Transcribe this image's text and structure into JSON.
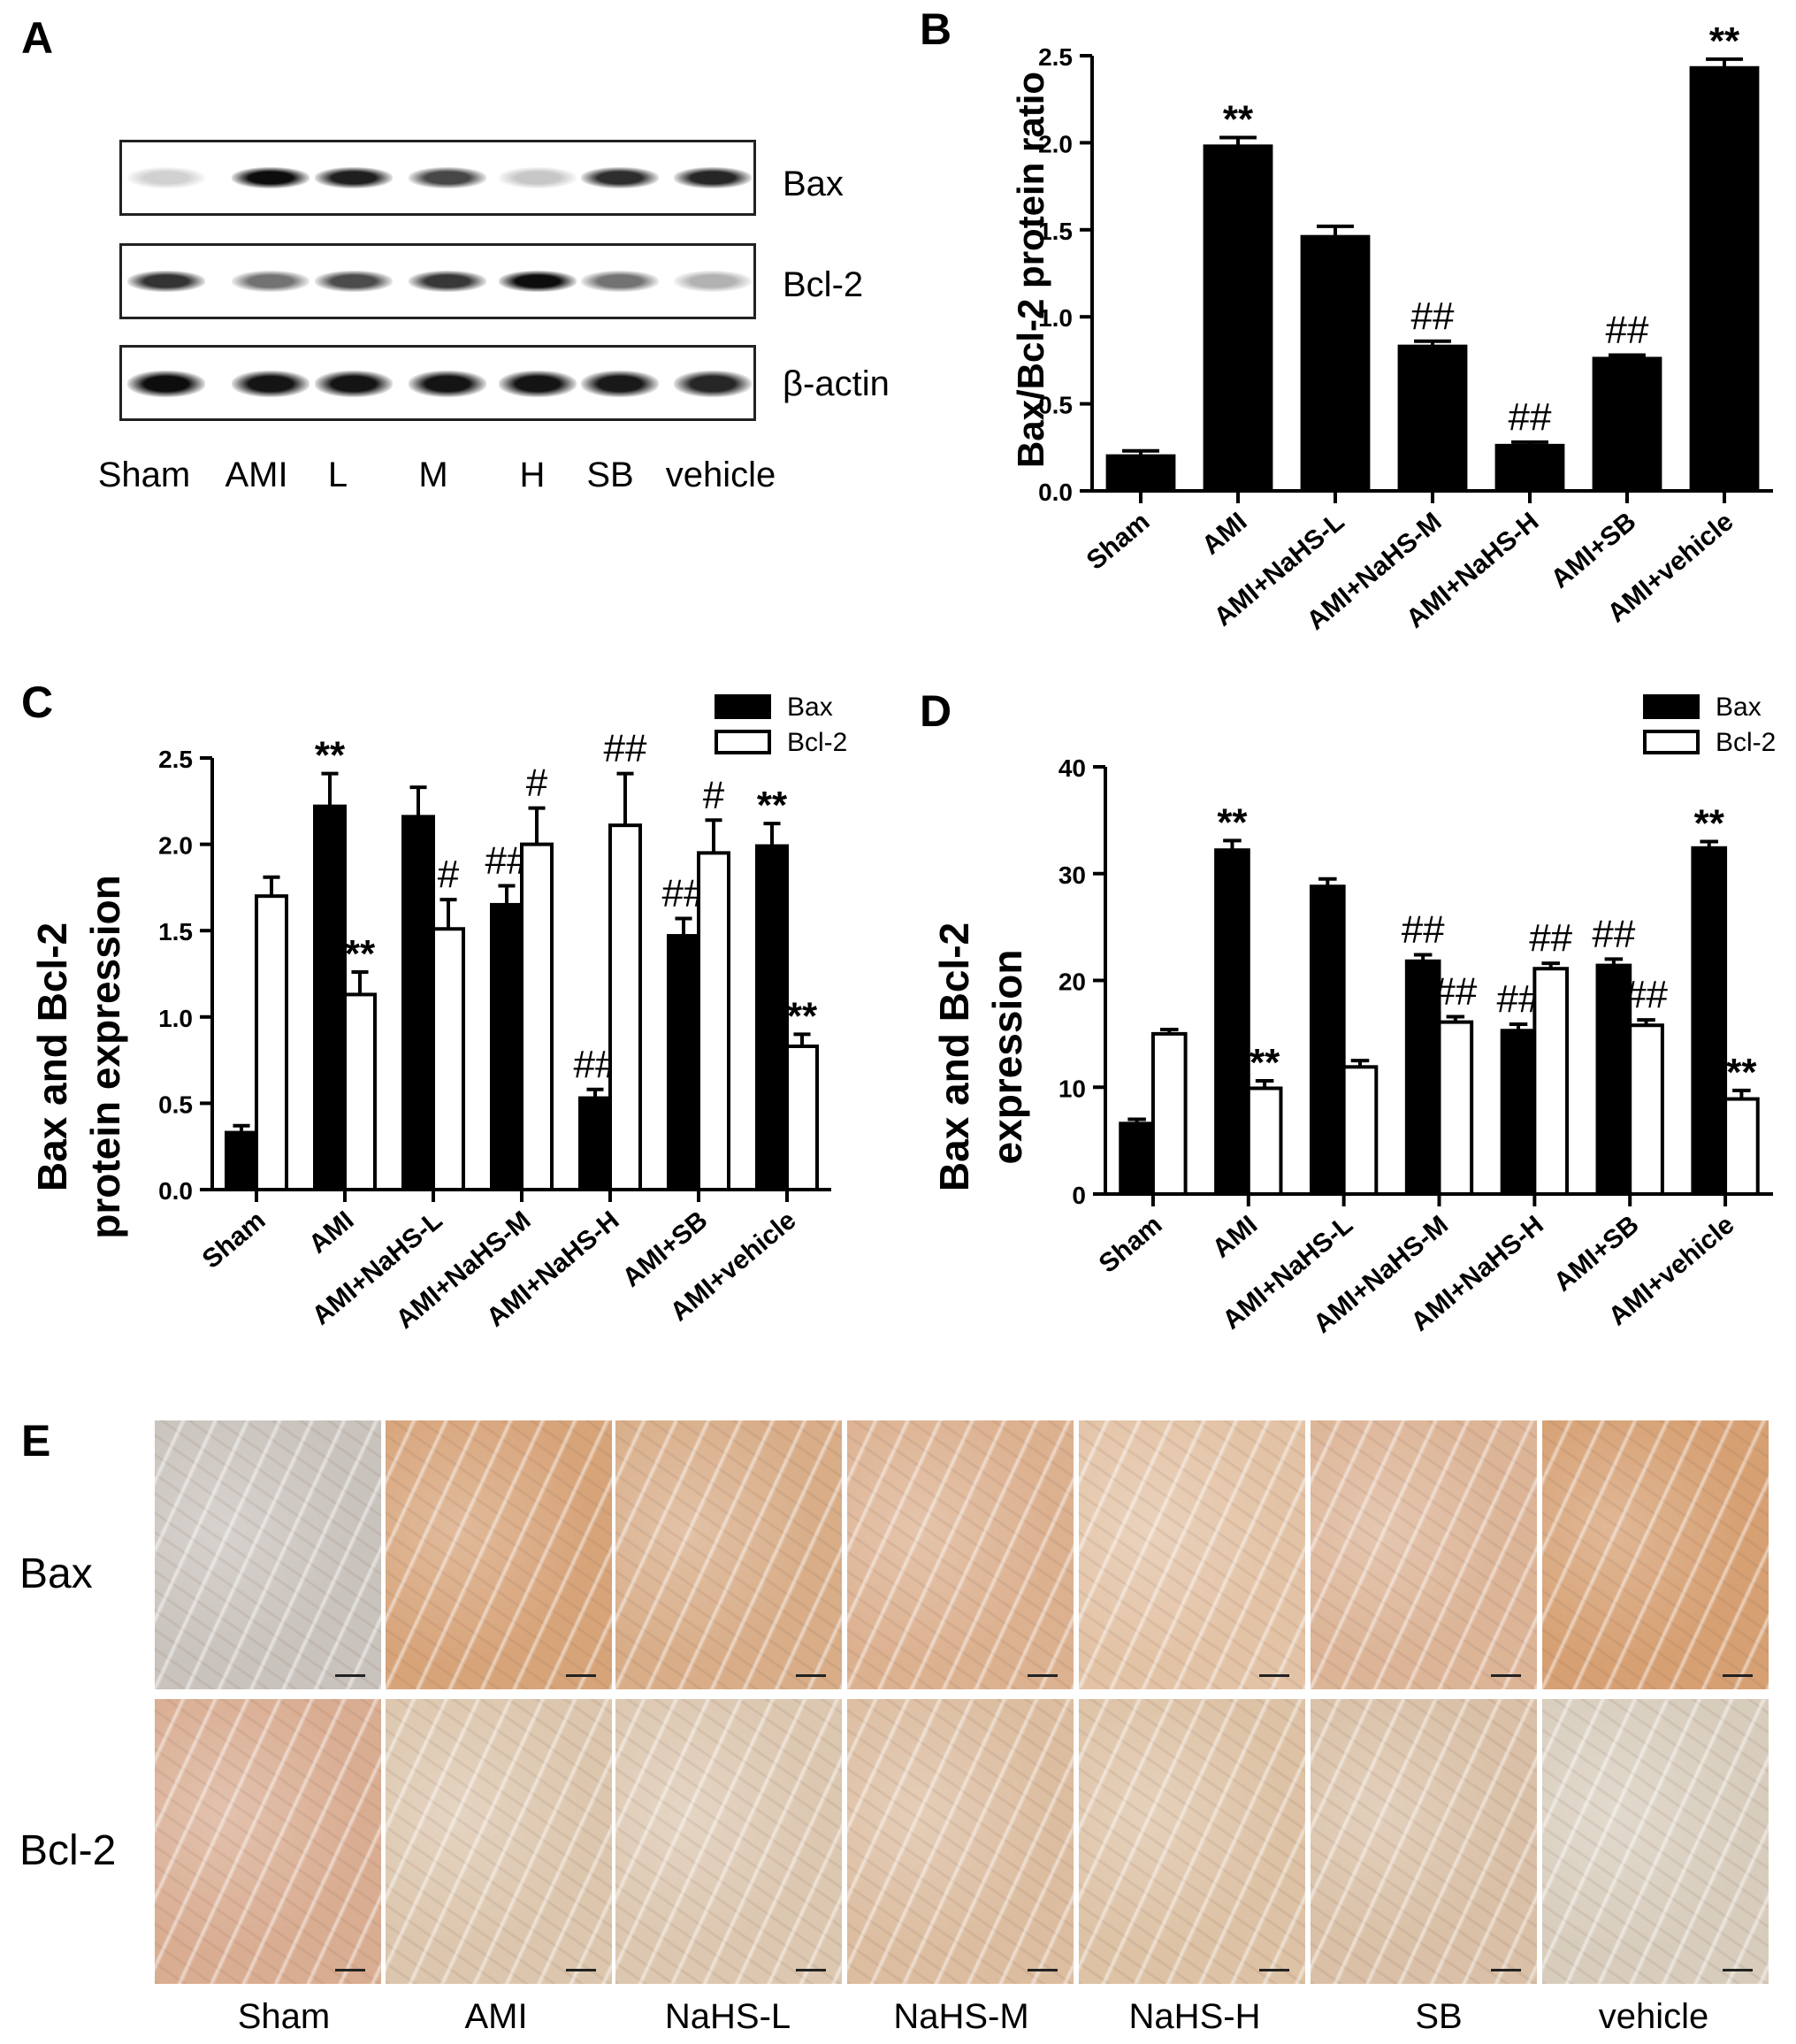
{
  "panels": {
    "a": {
      "letter": "A"
    },
    "b": {
      "letter": "B"
    },
    "c": {
      "letter": "C"
    },
    "d": {
      "letter": "D"
    },
    "e": {
      "letter": "E"
    }
  },
  "western_blot": {
    "rows": [
      {
        "label": "Bax",
        "bands": [
          0.18,
          0.95,
          0.88,
          0.72,
          0.22,
          0.82,
          0.85
        ]
      },
      {
        "label": "Bcl-2",
        "bands": [
          0.8,
          0.55,
          0.7,
          0.78,
          0.95,
          0.55,
          0.3
        ]
      },
      {
        "label": "β-actin",
        "bands": [
          0.95,
          0.92,
          0.92,
          0.92,
          0.92,
          0.9,
          0.85
        ]
      }
    ],
    "lanes": [
      "Sham",
      "AMI",
      "L",
      "M",
      "H",
      "SB",
      "vehicle"
    ]
  },
  "ihc": {
    "row_labels": [
      "Bax",
      "Bcl-2"
    ],
    "column_labels": [
      "Sham",
      "AMI",
      "NaHS-L",
      "NaHS-M",
      "NaHS-H",
      "SB",
      "vehicle"
    ],
    "tint_colors": {
      "Bax": [
        "#c9c3bd",
        "#d7a47a",
        "#d8ad88",
        "#dcb190",
        "#e3c3a6",
        "#dcb496",
        "#d6a073"
      ],
      "Bcl-2": [
        "#d9ad92",
        "#dcc6ad",
        "#dcc7b0",
        "#dcbda0",
        "#ddc2a5",
        "#d9c0a6",
        "#d8cdbd"
      ]
    }
  },
  "chart_data": [
    {
      "type": "bar",
      "title": "",
      "xlabel": "",
      "ylabel": "Bax/Bcl-2 protein ratio",
      "ylim": [
        0,
        2.5
      ],
      "yticks": [
        "0.0",
        "0.5",
        "1.0",
        "1.5",
        "2.0",
        "2.5"
      ],
      "categories": [
        "Sham",
        "AMI",
        "AMI+NaHS-L",
        "AMI+NaHS-M",
        "AMI+NaHS-H",
        "AMI+SB",
        "AMI+vehicle"
      ],
      "series": [
        {
          "values": [
            0.2,
            1.98,
            1.46,
            0.83,
            0.26,
            0.76,
            2.43
          ],
          "errors": [
            0.03,
            0.05,
            0.06,
            0.03,
            0.02,
            0.02,
            0.05
          ],
          "annotations": [
            "",
            "**",
            "",
            "##",
            "##",
            "##",
            "**"
          ]
        }
      ],
      "color": "#000000"
    },
    {
      "type": "bar",
      "title": "",
      "xlabel": "",
      "ylabel": [
        "Bax and Bcl-2",
        "protein expression"
      ],
      "ylim": [
        0,
        2.5
      ],
      "yticks": [
        "0.0",
        "0.5",
        "1.0",
        "1.5",
        "2.0",
        "2.5"
      ],
      "legend_position": "top-right",
      "categories": [
        "Sham",
        "AMI",
        "AMI+NaHS-L",
        "AMI+NaHS-M",
        "AMI+NaHS-H",
        "AMI+SB",
        "AMI+vehicle"
      ],
      "series": [
        {
          "name": "Bax",
          "fill": "#000000",
          "values": [
            0.33,
            2.22,
            2.16,
            1.65,
            0.53,
            1.47,
            1.99
          ],
          "errors": [
            0.04,
            0.19,
            0.17,
            0.11,
            0.05,
            0.1,
            0.13
          ],
          "annotations": [
            "",
            "**",
            "",
            "##",
            "##",
            "##",
            "**"
          ]
        },
        {
          "name": "Bcl-2",
          "fill": "#ffffff",
          "values": [
            1.7,
            1.13,
            1.51,
            2.0,
            2.11,
            1.95,
            0.83
          ],
          "errors": [
            0.11,
            0.13,
            0.17,
            0.21,
            0.3,
            0.19,
            0.07
          ],
          "annotations": [
            "",
            "**",
            "#",
            "#",
            "##",
            "#",
            "**"
          ]
        }
      ]
    },
    {
      "type": "bar",
      "title": "",
      "xlabel": "",
      "ylabel": [
        "Bax and Bcl-2",
        "expression"
      ],
      "ylim": [
        0,
        40
      ],
      "yticks": [
        "0",
        "10",
        "20",
        "30",
        "40"
      ],
      "legend_position": "top-right",
      "categories": [
        "Sham",
        "AMI",
        "AMI+NaHS-L",
        "AMI+NaHS-M",
        "AMI+NaHS-H",
        "AMI+SB",
        "AMI+vehicle"
      ],
      "series": [
        {
          "name": "Bax",
          "fill": "#000000",
          "values": [
            6.6,
            32.2,
            28.8,
            21.8,
            15.3,
            21.4,
            32.4
          ],
          "errors": [
            0.4,
            0.9,
            0.7,
            0.6,
            0.6,
            0.6,
            0.6
          ],
          "annotations": [
            "",
            "**",
            "",
            "##",
            "##",
            "##",
            "**"
          ]
        },
        {
          "name": "Bcl-2",
          "fill": "#ffffff",
          "values": [
            15.0,
            9.9,
            11.9,
            16.1,
            21.1,
            15.8,
            8.9
          ],
          "errors": [
            0.4,
            0.7,
            0.6,
            0.5,
            0.5,
            0.5,
            0.8
          ],
          "annotations": [
            "",
            "**",
            "",
            "##",
            "##",
            "##",
            "**"
          ]
        }
      ]
    }
  ]
}
